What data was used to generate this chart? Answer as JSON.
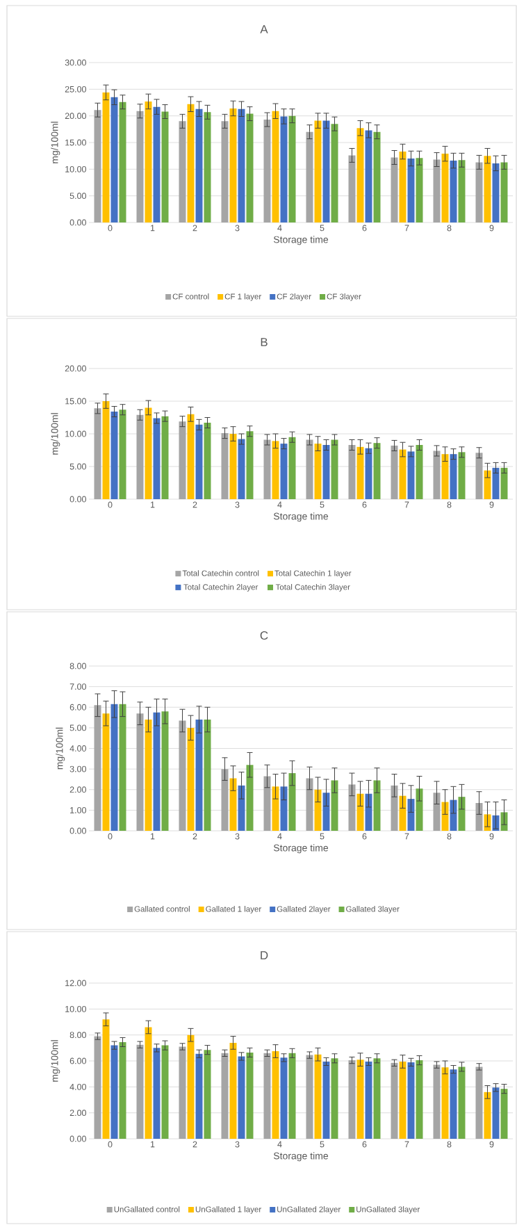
{
  "chart_data": [
    {
      "type": "bar",
      "title": "A",
      "xlabel": "Storage time",
      "ylabel": "mg/100ml",
      "categories": [
        "0",
        "1",
        "2",
        "3",
        "4",
        "5",
        "6",
        "7",
        "8",
        "9"
      ],
      "series": [
        {
          "name": "CF control",
          "color": "#a5a5a5",
          "values": [
            21.1,
            20.9,
            19.0,
            19.0,
            19.3,
            17.0,
            12.6,
            12.2,
            11.8,
            11.3
          ],
          "errors": [
            1.3,
            1.3,
            1.3,
            1.3,
            1.3,
            1.3,
            1.3,
            1.3,
            1.3,
            1.3
          ]
        },
        {
          "name": "CF 1 layer",
          "color": "#ffc000",
          "values": [
            24.4,
            22.7,
            22.2,
            21.4,
            20.9,
            19.1,
            17.7,
            13.3,
            12.9,
            12.5
          ],
          "errors": [
            1.4,
            1.4,
            1.4,
            1.4,
            1.4,
            1.4,
            1.4,
            1.4,
            1.4,
            1.4
          ]
        },
        {
          "name": "CF 2layer",
          "color": "#4472c4",
          "values": [
            23.5,
            21.7,
            21.3,
            21.3,
            19.9,
            19.1,
            17.3,
            12.0,
            11.6,
            11.1
          ],
          "errors": [
            1.4,
            1.4,
            1.4,
            1.4,
            1.4,
            1.4,
            1.4,
            1.4,
            1.4,
            1.4
          ]
        },
        {
          "name": "CF 3layer",
          "color": "#70ad47",
          "values": [
            22.6,
            20.8,
            20.7,
            20.4,
            20.0,
            18.5,
            17.0,
            12.1,
            11.7,
            11.3
          ],
          "errors": [
            1.3,
            1.3,
            1.3,
            1.3,
            1.3,
            1.3,
            1.3,
            1.3,
            1.3,
            1.3
          ]
        }
      ],
      "ylim": [
        0,
        30
      ],
      "yticks": [
        {
          "value": 0,
          "label": "0.00"
        },
        {
          "value": 5,
          "label": "5.00"
        },
        {
          "value": 10,
          "label": "10.00"
        },
        {
          "value": 15,
          "label": "15.00"
        },
        {
          "value": 20,
          "label": "20.00"
        },
        {
          "value": 25,
          "label": "25.00"
        },
        {
          "value": 30,
          "label": "30.00"
        }
      ],
      "grid": "y",
      "legend": "bottom"
    },
    {
      "type": "bar",
      "title": "B",
      "xlabel": "Storage time",
      "ylabel": "mg/100ml",
      "categories": [
        "0",
        "1",
        "2",
        "3",
        "4",
        "5",
        "6",
        "7",
        "8",
        "9"
      ],
      "series": [
        {
          "name": "Total Catechin control",
          "color": "#a5a5a5",
          "values": [
            13.9,
            12.9,
            11.9,
            10.1,
            9.1,
            9.1,
            8.3,
            8.2,
            7.4,
            7.1
          ],
          "errors": [
            0.8,
            0.8,
            0.8,
            0.8,
            0.8,
            0.8,
            0.8,
            0.8,
            0.8,
            0.8
          ]
        },
        {
          "name": "Total Catechin 1 layer",
          "color": "#ffc000",
          "values": [
            15.0,
            14.0,
            13.0,
            10.0,
            8.9,
            8.5,
            8.0,
            7.6,
            6.9,
            4.4
          ],
          "errors": [
            1.1,
            1.1,
            1.1,
            1.1,
            1.1,
            1.1,
            1.1,
            1.1,
            1.1,
            1.1
          ]
        },
        {
          "name": "Total Catechin 2layer",
          "color": "#4472c4",
          "values": [
            13.4,
            12.4,
            11.4,
            9.2,
            8.5,
            8.3,
            7.8,
            7.3,
            6.9,
            4.8
          ],
          "errors": [
            0.8,
            0.8,
            0.8,
            0.8,
            0.8,
            0.8,
            0.8,
            0.8,
            0.8,
            0.8
          ]
        },
        {
          "name": "Total Catechin 3layer",
          "color": "#70ad47",
          "values": [
            13.7,
            12.7,
            11.7,
            10.4,
            9.5,
            9.1,
            8.6,
            8.3,
            7.2,
            4.8
          ],
          "errors": [
            0.8,
            0.8,
            0.8,
            0.8,
            0.8,
            0.8,
            0.8,
            0.8,
            0.8,
            0.8
          ]
        }
      ],
      "ylim": [
        0,
        20
      ],
      "yticks": [
        {
          "value": 0,
          "label": "0.00"
        },
        {
          "value": 5,
          "label": "5.00"
        },
        {
          "value": 10,
          "label": "10.00"
        },
        {
          "value": 15,
          "label": "15.00"
        },
        {
          "value": 20,
          "label": "20.00"
        }
      ],
      "grid": "y",
      "legend": "bottom"
    },
    {
      "type": "bar",
      "title": "C",
      "xlabel": "Storage time",
      "ylabel": "mg/100ml",
      "categories": [
        "0",
        "1",
        "2",
        "3",
        "4",
        "5",
        "6",
        "7",
        "8",
        "9"
      ],
      "series": [
        {
          "name": "Gallated control",
          "color": "#a5a5a5",
          "values": [
            6.1,
            5.7,
            5.35,
            3.0,
            2.65,
            2.55,
            2.25,
            2.2,
            1.85,
            1.35
          ],
          "errors": [
            0.55,
            0.55,
            0.55,
            0.55,
            0.55,
            0.55,
            0.55,
            0.55,
            0.55,
            0.55
          ]
        },
        {
          "name": "Gallated 1 layer",
          "color": "#ffc000",
          "values": [
            5.7,
            5.4,
            5.0,
            2.55,
            2.15,
            2.0,
            1.8,
            1.7,
            1.4,
            0.8
          ],
          "errors": [
            0.6,
            0.6,
            0.6,
            0.6,
            0.6,
            0.6,
            0.6,
            0.6,
            0.6,
            0.6
          ]
        },
        {
          "name": "Gallated 2layer",
          "color": "#4472c4",
          "values": [
            6.15,
            5.75,
            5.4,
            2.2,
            2.15,
            1.85,
            1.8,
            1.55,
            1.5,
            0.75
          ],
          "errors": [
            0.65,
            0.65,
            0.65,
            0.65,
            0.65,
            0.65,
            0.65,
            0.65,
            0.65,
            0.65
          ]
        },
        {
          "name": "Gallated 3layer",
          "color": "#70ad47",
          "values": [
            6.15,
            5.8,
            5.4,
            3.2,
            2.8,
            2.45,
            2.45,
            2.05,
            1.65,
            0.9
          ],
          "errors": [
            0.6,
            0.6,
            0.6,
            0.6,
            0.6,
            0.6,
            0.6,
            0.6,
            0.6,
            0.6
          ]
        }
      ],
      "ylim": [
        0,
        8
      ],
      "yticks": [
        {
          "value": 0,
          "label": "0.00"
        },
        {
          "value": 1,
          "label": "1.00"
        },
        {
          "value": 2,
          "label": "2.00"
        },
        {
          "value": 3,
          "label": "3.00"
        },
        {
          "value": 4,
          "label": "4.00"
        },
        {
          "value": 5,
          "label": "5.00"
        },
        {
          "value": 6,
          "label": "6.00"
        },
        {
          "value": 7,
          "label": "7.00"
        },
        {
          "value": 8,
          "label": "8.00"
        }
      ],
      "grid": "y",
      "legend": "bottom"
    },
    {
      "type": "bar",
      "title": "D",
      "xlabel": "Storage time",
      "ylabel": "mg/100ml",
      "categories": [
        "0",
        "1",
        "2",
        "3",
        "4",
        "5",
        "6",
        "7",
        "8",
        "9"
      ],
      "series": [
        {
          "name": "UnGallated control",
          "color": "#a5a5a5",
          "values": [
            7.9,
            7.25,
            7.1,
            6.6,
            6.6,
            6.45,
            6.05,
            5.85,
            5.7,
            5.55
          ],
          "errors": [
            0.25,
            0.25,
            0.25,
            0.25,
            0.25,
            0.25,
            0.25,
            0.25,
            0.25,
            0.25
          ]
        },
        {
          "name": "UnGallated 1 layer",
          "color": "#ffc000",
          "values": [
            9.2,
            8.6,
            8.0,
            7.4,
            6.75,
            6.5,
            6.1,
            5.95,
            5.5,
            3.6
          ],
          "errors": [
            0.5,
            0.5,
            0.5,
            0.5,
            0.5,
            0.5,
            0.5,
            0.5,
            0.5,
            0.5
          ]
        },
        {
          "name": "UnGallated 2layer",
          "color": "#4472c4",
          "values": [
            7.2,
            7.0,
            6.55,
            6.35,
            6.25,
            5.95,
            5.95,
            5.9,
            5.35,
            3.95
          ],
          "errors": [
            0.3,
            0.3,
            0.3,
            0.3,
            0.3,
            0.3,
            0.3,
            0.3,
            0.3,
            0.3
          ]
        },
        {
          "name": "UnGallated 3layer",
          "color": "#70ad47",
          "values": [
            7.45,
            7.2,
            6.85,
            6.65,
            6.6,
            6.2,
            6.2,
            6.05,
            5.55,
            3.85
          ],
          "errors": [
            0.35,
            0.35,
            0.35,
            0.35,
            0.35,
            0.35,
            0.35,
            0.35,
            0.35,
            0.35
          ]
        }
      ],
      "ylim": [
        0,
        12
      ],
      "yticks": [
        {
          "value": 0,
          "label": "0.00"
        },
        {
          "value": 2,
          "label": "2.00"
        },
        {
          "value": 4,
          "label": "4.00"
        },
        {
          "value": 6,
          "label": "6.00"
        },
        {
          "value": 8,
          "label": "8.00"
        },
        {
          "value": 10,
          "label": "10.00"
        },
        {
          "value": 12,
          "label": "12.00"
        }
      ],
      "grid": "y",
      "legend": "bottom"
    }
  ]
}
